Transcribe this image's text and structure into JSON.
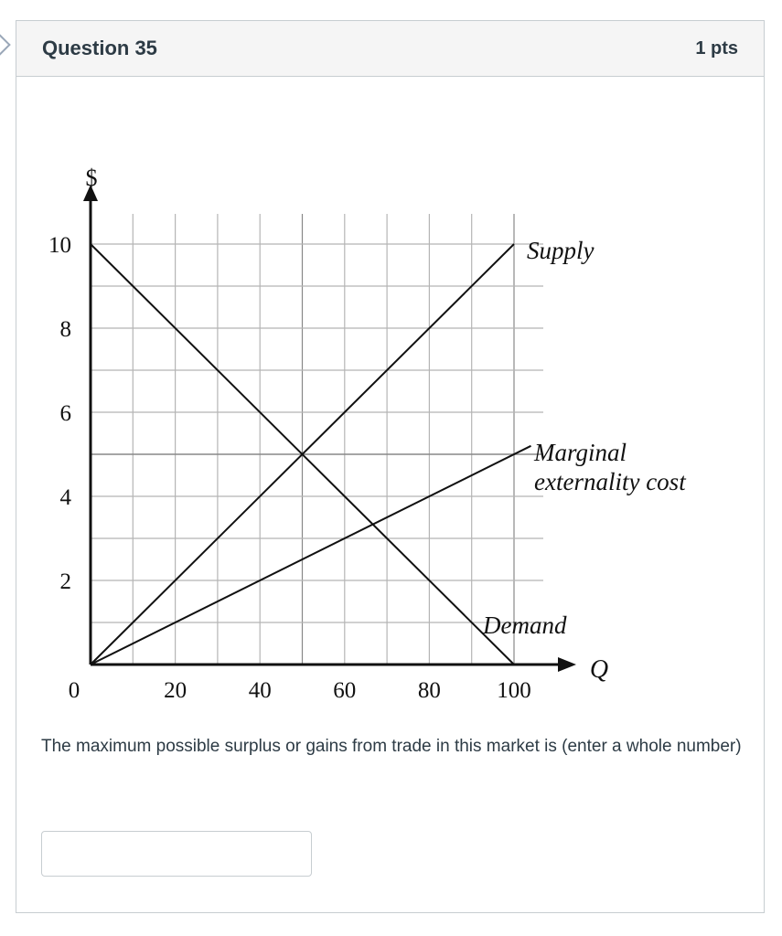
{
  "question": {
    "title": "Question 35",
    "points": "1 pts",
    "prompt": "The maximum possible surplus or gains from trade in this market is (enter a whole number)",
    "answer": {
      "value": "",
      "placeholder": ""
    }
  },
  "chart_data": {
    "type": "line",
    "ylabel": "$",
    "xlabel": "Q",
    "xlim": [
      0,
      100
    ],
    "ylim": [
      0,
      10
    ],
    "x_ticks": [
      0,
      20,
      40,
      60,
      80,
      100
    ],
    "y_ticks": [
      2,
      4,
      6,
      8,
      10
    ],
    "x_tick_labels": [
      "0",
      "20",
      "40",
      "60",
      "80",
      "100"
    ],
    "y_tick_labels": [
      "2",
      "4",
      "6",
      "8",
      "10"
    ],
    "grid": true,
    "grid_step_x": 10,
    "grid_step_y": 1,
    "series": [
      {
        "name": "Supply",
        "x": [
          0,
          100
        ],
        "y": [
          0,
          10
        ]
      },
      {
        "name": "Demand",
        "x": [
          0,
          100
        ],
        "y": [
          10,
          0
        ]
      },
      {
        "name": "Marginal externality cost",
        "x": [
          0,
          100
        ],
        "y": [
          0,
          5
        ]
      }
    ],
    "series_label_lines": [
      [
        "Supply"
      ],
      [
        "Demand"
      ],
      [
        "Marginal",
        "externality cost"
      ]
    ],
    "colors": {
      "line": "#111111",
      "grid": "#b5b5b5",
      "grid_major": "#888888"
    }
  }
}
